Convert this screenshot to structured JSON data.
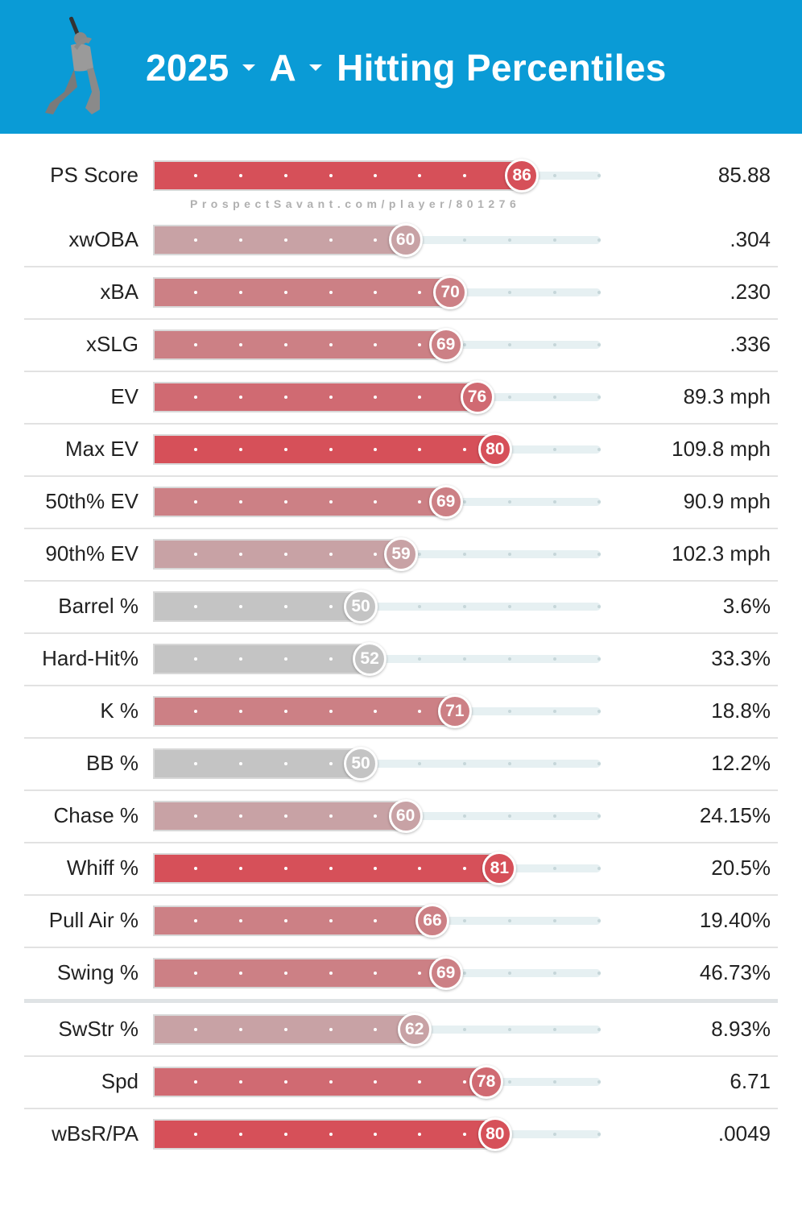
{
  "header": {
    "year": "2025",
    "level": "A",
    "title": "Hitting Percentiles",
    "logo_icon": "batter-silhouette-icon",
    "background_color": "#0a9bd6"
  },
  "watermark": "ProspectSavant.com/player/801276",
  "colors": {
    "high": "#d65059",
    "mid_high": "#d06a72",
    "mid": "#cc8085",
    "low_mid": "#c8a2a5",
    "neutral": "#c4c4c4"
  },
  "rows": [
    {
      "label": "PS Score",
      "percentile": 86,
      "value": "85.88"
    },
    {
      "label": "xwOBA",
      "percentile": 60,
      "value": ".304"
    },
    {
      "label": "xBA",
      "percentile": 70,
      "value": ".230"
    },
    {
      "label": "xSLG",
      "percentile": 69,
      "value": ".336"
    },
    {
      "label": "EV",
      "percentile": 76,
      "value": "89.3 mph"
    },
    {
      "label": "Max EV",
      "percentile": 80,
      "value": "109.8 mph"
    },
    {
      "label": "50th% EV",
      "percentile": 69,
      "value": "90.9 mph"
    },
    {
      "label": "90th% EV",
      "percentile": 59,
      "value": "102.3 mph"
    },
    {
      "label": "Barrel %",
      "percentile": 50,
      "value": "3.6%"
    },
    {
      "label": "Hard-Hit%",
      "percentile": 52,
      "value": "33.3%"
    },
    {
      "label": "K %",
      "percentile": 71,
      "value": "18.8%"
    },
    {
      "label": "BB %",
      "percentile": 50,
      "value": "12.2%"
    },
    {
      "label": "Chase %",
      "percentile": 60,
      "value": "24.15%"
    },
    {
      "label": "Whiff %",
      "percentile": 81,
      "value": "20.5%"
    },
    {
      "label": "Pull Air %",
      "percentile": 66,
      "value": "19.40%"
    },
    {
      "label": "Swing %",
      "percentile": 69,
      "value": "46.73%"
    },
    {
      "label": "SwStr %",
      "percentile": 62,
      "value": "8.93%"
    },
    {
      "label": "Spd",
      "percentile": 78,
      "value": "6.71"
    },
    {
      "label": "wBsR/PA",
      "percentile": 80,
      "value": ".0049"
    }
  ]
}
